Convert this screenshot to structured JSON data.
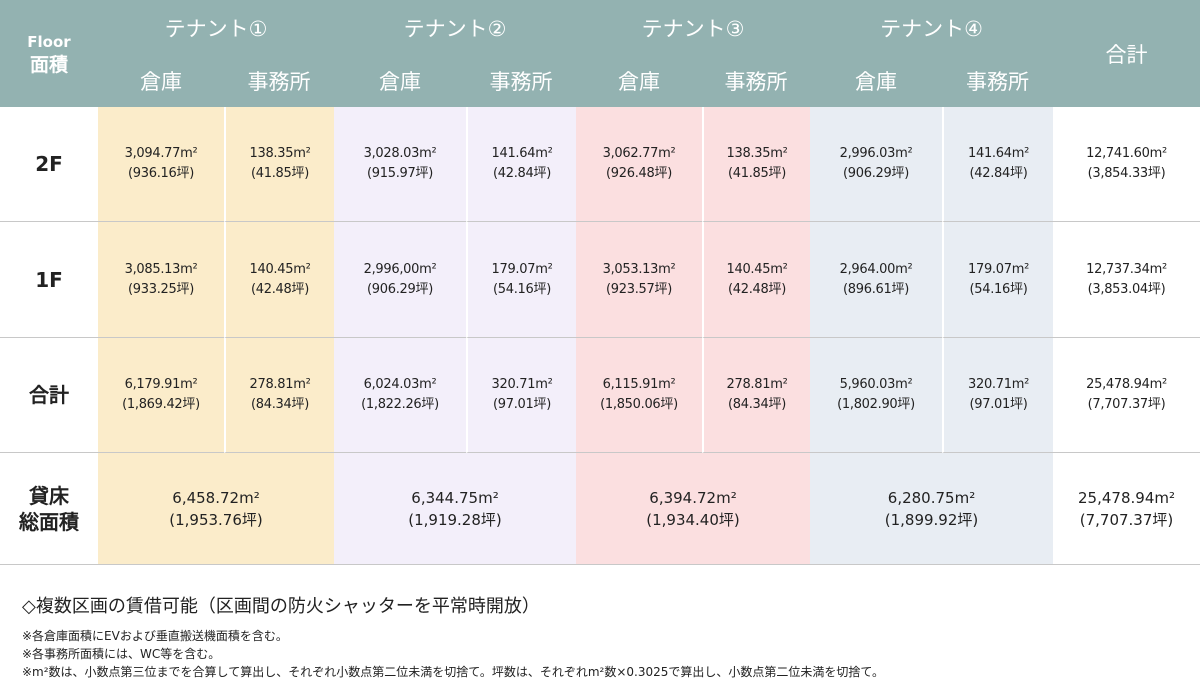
{
  "header": {
    "corner": [
      "Floor",
      "面積"
    ],
    "total": "合計",
    "tenants": [
      {
        "name": "テナント①",
        "sub": [
          "倉庫",
          "事務所"
        ]
      },
      {
        "name": "テナント②",
        "sub": [
          "倉庫",
          "事務所"
        ]
      },
      {
        "name": "テナント③",
        "sub": [
          "倉庫",
          "事務所"
        ]
      },
      {
        "name": "テナント④",
        "sub": [
          "倉庫",
          "事務所"
        ]
      }
    ]
  },
  "rows": [
    {
      "label": [
        "2F"
      ],
      "cells": [
        [
          "3,094.77m²",
          "(936.16坪)"
        ],
        [
          "138.35m²",
          "(41.85坪)"
        ],
        [
          "3,028.03m²",
          "(915.97坪)"
        ],
        [
          "141.64m²",
          "(42.84坪)"
        ],
        [
          "3,062.77m²",
          "(926.48坪)"
        ],
        [
          "138.35m²",
          "(41.85坪)"
        ],
        [
          "2,996.03m²",
          "(906.29坪)"
        ],
        [
          "141.64m²",
          "(42.84坪)"
        ]
      ],
      "total": [
        "12,741.60m²",
        "(3,854.33坪)"
      ]
    },
    {
      "label": [
        "1F"
      ],
      "cells": [
        [
          "3,085.13m²",
          "(933.25坪)"
        ],
        [
          "140.45m²",
          "(42.48坪)"
        ],
        [
          "2,996,00m²",
          "(906.29坪)"
        ],
        [
          "179.07m²",
          "(54.16坪)"
        ],
        [
          "3,053.13m²",
          "(923.57坪)"
        ],
        [
          "140.45m²",
          "(42.48坪)"
        ],
        [
          "2,964.00m²",
          "(896.61坪)"
        ],
        [
          "179.07m²",
          "(54.16坪)"
        ]
      ],
      "total": [
        "12,737.34m²",
        "(3,853.04坪)"
      ]
    },
    {
      "label": [
        "合計"
      ],
      "cells": [
        [
          "6,179.91m²",
          "(1,869.42坪)"
        ],
        [
          "278.81m²",
          "(84.34坪)"
        ],
        [
          "6,024.03m²",
          "(1,822.26坪)"
        ],
        [
          "320.71m²",
          "(97.01坪)"
        ],
        [
          "6,115.91m²",
          "(1,850.06坪)"
        ],
        [
          "278.81m²",
          "(84.34坪)"
        ],
        [
          "5,960.03m²",
          "(1,802.90坪)"
        ],
        [
          "320.71m²",
          "(97.01坪)"
        ]
      ],
      "total": [
        "25,478.94m²",
        "(7,707.37坪)"
      ]
    }
  ],
  "floor_area": {
    "label": [
      "貸床",
      "総面積"
    ],
    "cells": [
      [
        "6,458.72m²",
        "(1,953.76坪)"
      ],
      [
        "6,344.75m²",
        "(1,919.28坪)"
      ],
      [
        "6,394.72m²",
        "(1,934.40坪)"
      ],
      [
        "6,280.75m²",
        "(1,899.92坪)"
      ]
    ],
    "total": [
      "25,478.94m²",
      "(7,707.37坪)"
    ]
  },
  "notes": [
    "◇複数区画の賃借可能（区画間の防火シャッターを平常時開放）",
    "※各倉庫面積にEVおよび垂直搬送機面積を含む。",
    "※各事務所面積には、WC等を含む。",
    "※m²数は、小数点第三位までを合算して算出し、それぞれ小数点第二位未満を切捨て。坪数は、それぞれm²数×0.3025で算出し、小数点第二位未満を切捨て。"
  ]
}
